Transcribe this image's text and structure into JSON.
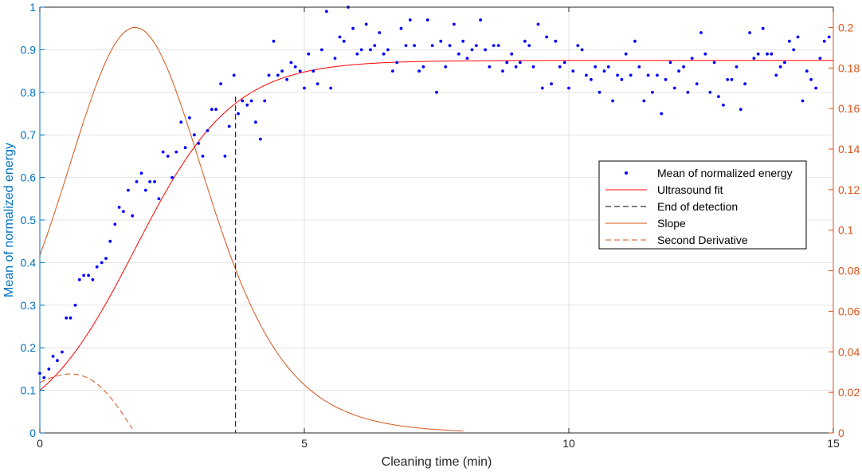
{
  "chart_data": {
    "type": "scatter",
    "xlabel": "Cleaning time (min)",
    "ylabel_left": "Mean of normalized energy",
    "ylabel_right": "",
    "xlim": [
      0,
      15
    ],
    "ylim_left": [
      0,
      1
    ],
    "ylim_right": [
      0,
      0.21
    ],
    "x_ticks": [
      0,
      5,
      10,
      15
    ],
    "x_tick_labels": [
      "0",
      "5",
      "10",
      "15"
    ],
    "y_left_ticks": [
      0,
      0.1,
      0.2,
      0.3,
      0.4,
      0.5,
      0.6,
      0.7,
      0.8,
      0.9,
      1
    ],
    "y_left_tick_labels": [
      "0",
      "0.1",
      "0.2",
      "0.3",
      "0.4",
      "0.5",
      "0.6",
      "0.7",
      "0.8",
      "0.9",
      "1"
    ],
    "y_right_ticks": [
      0,
      0.02,
      0.04,
      0.06,
      0.08,
      0.1,
      0.12,
      0.14,
      0.16,
      0.18,
      0.2
    ],
    "y_right_tick_labels": [
      "0",
      "0.02",
      "0.04",
      "0.06",
      "0.08",
      "0.1",
      "0.12",
      "0.14",
      "0.16",
      "0.18",
      "0.2"
    ],
    "grid": true,
    "legend_position": "right",
    "colors": {
      "scatter": "#0000FF",
      "fit": "#FF0000",
      "detection": "#000000",
      "slope": "#D95319",
      "left_axis": "#0072BD",
      "right_axis": "#D95319"
    },
    "series": [
      {
        "name": "Mean of normalized energy",
        "kind": "points",
        "axis": "left",
        "x": [
          0.0,
          0.08,
          0.17,
          0.25,
          0.33,
          0.42,
          0.5,
          0.58,
          0.67,
          0.75,
          0.83,
          0.92,
          1.0,
          1.08,
          1.17,
          1.25,
          1.33,
          1.42,
          1.5,
          1.58,
          1.67,
          1.75,
          1.83,
          1.92,
          2.0,
          2.08,
          2.17,
          2.25,
          2.33,
          2.42,
          2.5,
          2.58,
          2.67,
          2.75,
          2.83,
          2.92,
          3.0,
          3.08,
          3.17,
          3.25,
          3.33,
          3.42,
          3.5,
          3.58,
          3.67,
          3.75,
          3.83,
          3.92,
          4.0,
          4.08,
          4.17,
          4.25,
          4.33,
          4.42,
          4.5,
          4.58,
          4.67,
          4.75,
          4.83,
          4.92,
          5.0,
          5.08,
          5.17,
          5.25,
          5.33,
          5.42,
          5.5,
          5.58,
          5.67,
          5.75,
          5.83,
          5.92,
          6.0,
          6.08,
          6.17,
          6.25,
          6.33,
          6.42,
          6.5,
          6.58,
          6.67,
          6.75,
          6.83,
          6.92,
          7.0,
          7.08,
          7.17,
          7.25,
          7.33,
          7.42,
          7.5,
          7.58,
          7.67,
          7.75,
          7.83,
          7.92,
          8.0,
          8.08,
          8.17,
          8.25,
          8.33,
          8.42,
          8.5,
          8.58,
          8.67,
          8.75,
          8.83,
          8.92,
          9.0,
          9.08,
          9.17,
          9.25,
          9.33,
          9.42,
          9.5,
          9.58,
          9.67,
          9.75,
          9.83,
          9.92,
          10.0,
          10.08,
          10.17,
          10.25,
          10.33,
          10.42,
          10.5,
          10.58,
          10.67,
          10.75,
          10.83,
          10.92,
          11.0,
          11.08,
          11.17,
          11.25,
          11.33,
          11.42,
          11.5,
          11.58,
          11.67,
          11.75,
          11.83,
          11.92,
          12.0,
          12.08,
          12.17,
          12.25,
          12.33,
          12.42,
          12.5,
          12.58,
          12.67,
          12.75,
          12.83,
          12.92,
          13.0,
          13.08,
          13.17,
          13.25,
          13.33,
          13.42,
          13.5,
          13.58,
          13.67,
          13.75,
          13.83,
          13.92,
          14.0,
          14.08,
          14.17,
          14.25,
          14.33,
          14.42,
          14.5,
          14.58,
          14.67,
          14.75,
          14.83,
          14.92
        ],
        "y": [
          0.14,
          0.13,
          0.15,
          0.18,
          0.17,
          0.19,
          0.27,
          0.27,
          0.3,
          0.36,
          0.37,
          0.37,
          0.36,
          0.39,
          0.4,
          0.41,
          0.45,
          0.49,
          0.53,
          0.52,
          0.57,
          0.51,
          0.59,
          0.61,
          0.57,
          0.59,
          0.59,
          0.55,
          0.66,
          0.65,
          0.6,
          0.66,
          0.73,
          0.67,
          0.74,
          0.7,
          0.68,
          0.65,
          0.71,
          0.76,
          0.76,
          0.82,
          0.65,
          0.72,
          0.84,
          0.75,
          0.78,
          0.77,
          0.78,
          0.73,
          0.69,
          0.78,
          0.84,
          0.92,
          0.84,
          0.85,
          0.83,
          0.87,
          0.86,
          0.85,
          0.81,
          0.89,
          0.85,
          0.82,
          0.9,
          0.99,
          0.81,
          0.88,
          0.93,
          0.92,
          1.0,
          0.95,
          0.89,
          0.9,
          0.96,
          0.9,
          0.91,
          0.94,
          0.89,
          0.9,
          0.85,
          0.87,
          0.95,
          0.91,
          0.97,
          0.91,
          0.85,
          0.86,
          0.97,
          0.91,
          0.8,
          0.92,
          0.86,
          0.91,
          0.96,
          0.89,
          0.92,
          0.88,
          0.9,
          0.91,
          0.97,
          0.9,
          0.86,
          0.91,
          0.91,
          0.85,
          0.87,
          0.89,
          0.86,
          0.87,
          0.92,
          0.91,
          0.86,
          0.96,
          0.81,
          0.93,
          0.82,
          0.92,
          0.86,
          0.87,
          0.81,
          0.85,
          0.91,
          0.9,
          0.84,
          0.83,
          0.86,
          0.8,
          0.85,
          0.86,
          0.78,
          0.84,
          0.83,
          0.89,
          0.84,
          0.92,
          0.86,
          0.78,
          0.84,
          0.8,
          0.84,
          0.75,
          0.83,
          0.87,
          0.81,
          0.85,
          0.86,
          0.8,
          0.88,
          0.82,
          0.94,
          0.89,
          0.8,
          0.87,
          0.79,
          0.77,
          0.83,
          0.83,
          0.86,
          0.76,
          0.82,
          0.94,
          0.88,
          0.89,
          0.95,
          0.89,
          0.89,
          0.84,
          0.86,
          0.87,
          0.92,
          0.9,
          0.93,
          0.78,
          0.85,
          0.83,
          0.81,
          0.88,
          0.92,
          0.93
        ]
      },
      {
        "name": "Ultrasound fit",
        "kind": "sigmoid_fit",
        "axis": "left",
        "params": {
          "A": 0.875,
          "B": 0.1,
          "k": 1.08,
          "c": 1.8,
          "xmax": 15
        }
      },
      {
        "name": "End of detection",
        "kind": "vline",
        "axis": "left",
        "x": 3.7
      },
      {
        "name": "Slope",
        "kind": "derivative",
        "axis": "right",
        "xmax": 8
      },
      {
        "name": "Second Derivative",
        "kind": "second_derivative",
        "axis": "right",
        "xmax": 1.75
      }
    ]
  }
}
